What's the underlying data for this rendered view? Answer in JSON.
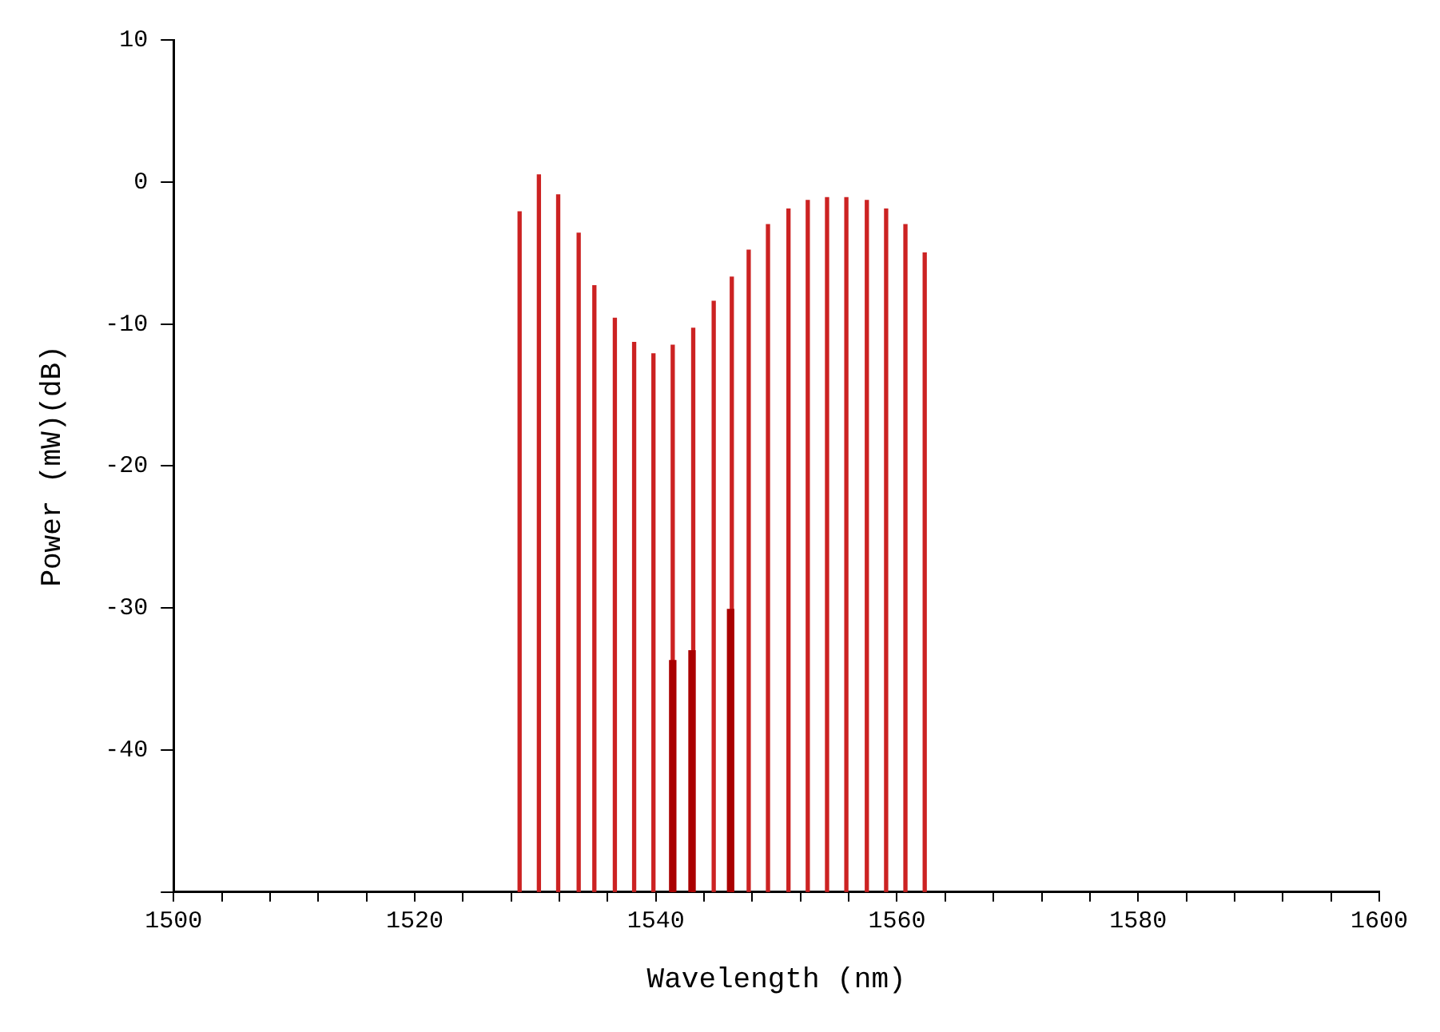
{
  "chart_data": {
    "type": "bar",
    "xlabel": "Wavelength (nm)",
    "ylabel": "Power (mW)(dB)",
    "series": [
      {
        "color": "#cc2222",
        "x": [
          1528.7,
          1530.3,
          1531.9,
          1533.6,
          1534.9,
          1536.6,
          1538.2,
          1539.8,
          1541.4,
          1543.1,
          1544.8,
          1546.3,
          1547.7,
          1549.3,
          1551.0,
          1552.6,
          1554.2,
          1555.8,
          1557.5,
          1559.1,
          1560.7,
          1562.3
        ],
        "base": [
          -50,
          -50,
          -50,
          -50,
          -50,
          -50,
          -50,
          -50,
          -50,
          -50,
          -50,
          -50,
          -50,
          -50,
          -50,
          -50,
          -50,
          -50,
          -50,
          -50,
          -50,
          -50
        ],
        "values": [
          47.9,
          50.5,
          49.1,
          46.4,
          42.7,
          40.4,
          38.7,
          37.9,
          38.5,
          39.7,
          41.6,
          43.3,
          45.2,
          47.0,
          48.1,
          48.7,
          48.9,
          48.9,
          48.7,
          48.1,
          47.0,
          45.0
        ]
      },
      {
        "color": "#aa0000",
        "x": [
          1541.4,
          1543.0,
          1546.2
        ],
        "base": [
          -50,
          -50,
          -50
        ],
        "values": [
          16.3,
          17.0,
          19.9
        ]
      }
    ],
    "xlim": [
      1500,
      1600
    ],
    "xticks": [
      1500,
      {
        "value": 1504,
        "label": null
      },
      {
        "value": 1508,
        "label": null
      },
      {
        "value": 1512,
        "label": null
      },
      {
        "value": 1516,
        "label": null
      },
      1520,
      {
        "value": 1524,
        "label": null
      },
      {
        "value": 1528,
        "label": null
      },
      {
        "value": 1532,
        "label": null
      },
      {
        "value": 1536,
        "label": null
      },
      1540,
      {
        "value": 1544,
        "label": null
      },
      {
        "value": 1548,
        "label": null
      },
      {
        "value": 1552,
        "label": null
      },
      {
        "value": 1556,
        "label": null
      },
      1560,
      {
        "value": 1564,
        "label": null
      },
      {
        "value": 1568,
        "label": null
      },
      {
        "value": 1572,
        "label": null
      },
      {
        "value": 1576,
        "label": null
      },
      1580,
      {
        "value": 1584,
        "label": null
      },
      {
        "value": 1588,
        "label": null
      },
      {
        "value": 1592,
        "label": null
      },
      {
        "value": 1596,
        "label": null
      },
      1600
    ],
    "ylim": [
      -50,
      10
    ],
    "yticks": [
      {
        "value": -50,
        "label": null
      },
      -40,
      -30,
      -20,
      -10,
      0,
      10
    ],
    "grid": false,
    "legend": false
  }
}
